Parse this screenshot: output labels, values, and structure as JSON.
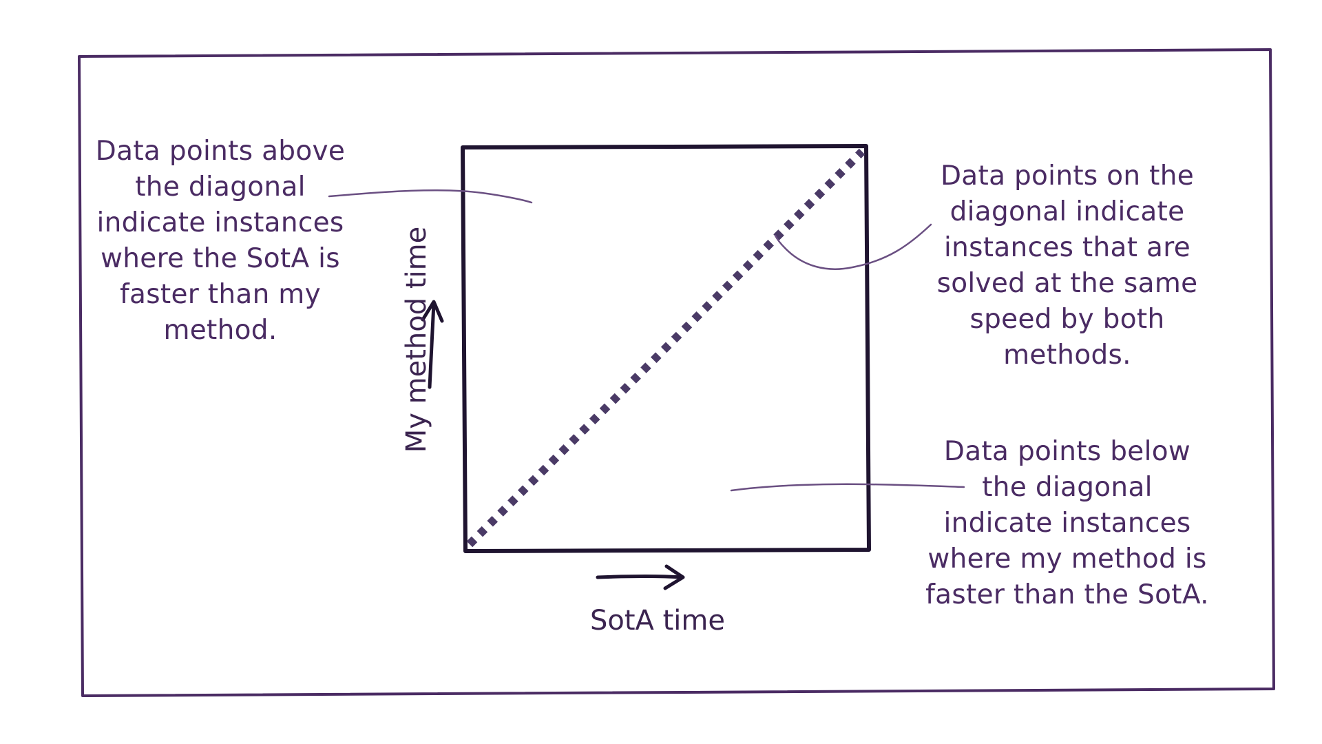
{
  "colors": {
    "frame": "#4a2b63",
    "plot_box": "#1f1430",
    "diagonal": "#4a3a66",
    "text": "#4a2b63",
    "axis_text": "#3b2450",
    "leader": "#6a4f82"
  },
  "axes": {
    "x_label": "SotA time",
    "y_label": "My method time"
  },
  "annotations": {
    "above": {
      "lines": [
        "Data points above",
        "the diagonal",
        "indicate instances",
        "where the SotA is",
        "faster than my",
        "method."
      ]
    },
    "on": {
      "lines": [
        "Data points on the",
        "diagonal indicate",
        "instances that are",
        "solved at the same",
        "speed by both",
        "methods."
      ]
    },
    "below": {
      "lines": [
        "Data points below",
        "the diagonal",
        "indicate instances",
        "where my method is",
        "faster than the SotA."
      ]
    }
  },
  "icons": {
    "x_arrow": "right-arrow-icon",
    "y_arrow": "up-arrow-icon"
  }
}
